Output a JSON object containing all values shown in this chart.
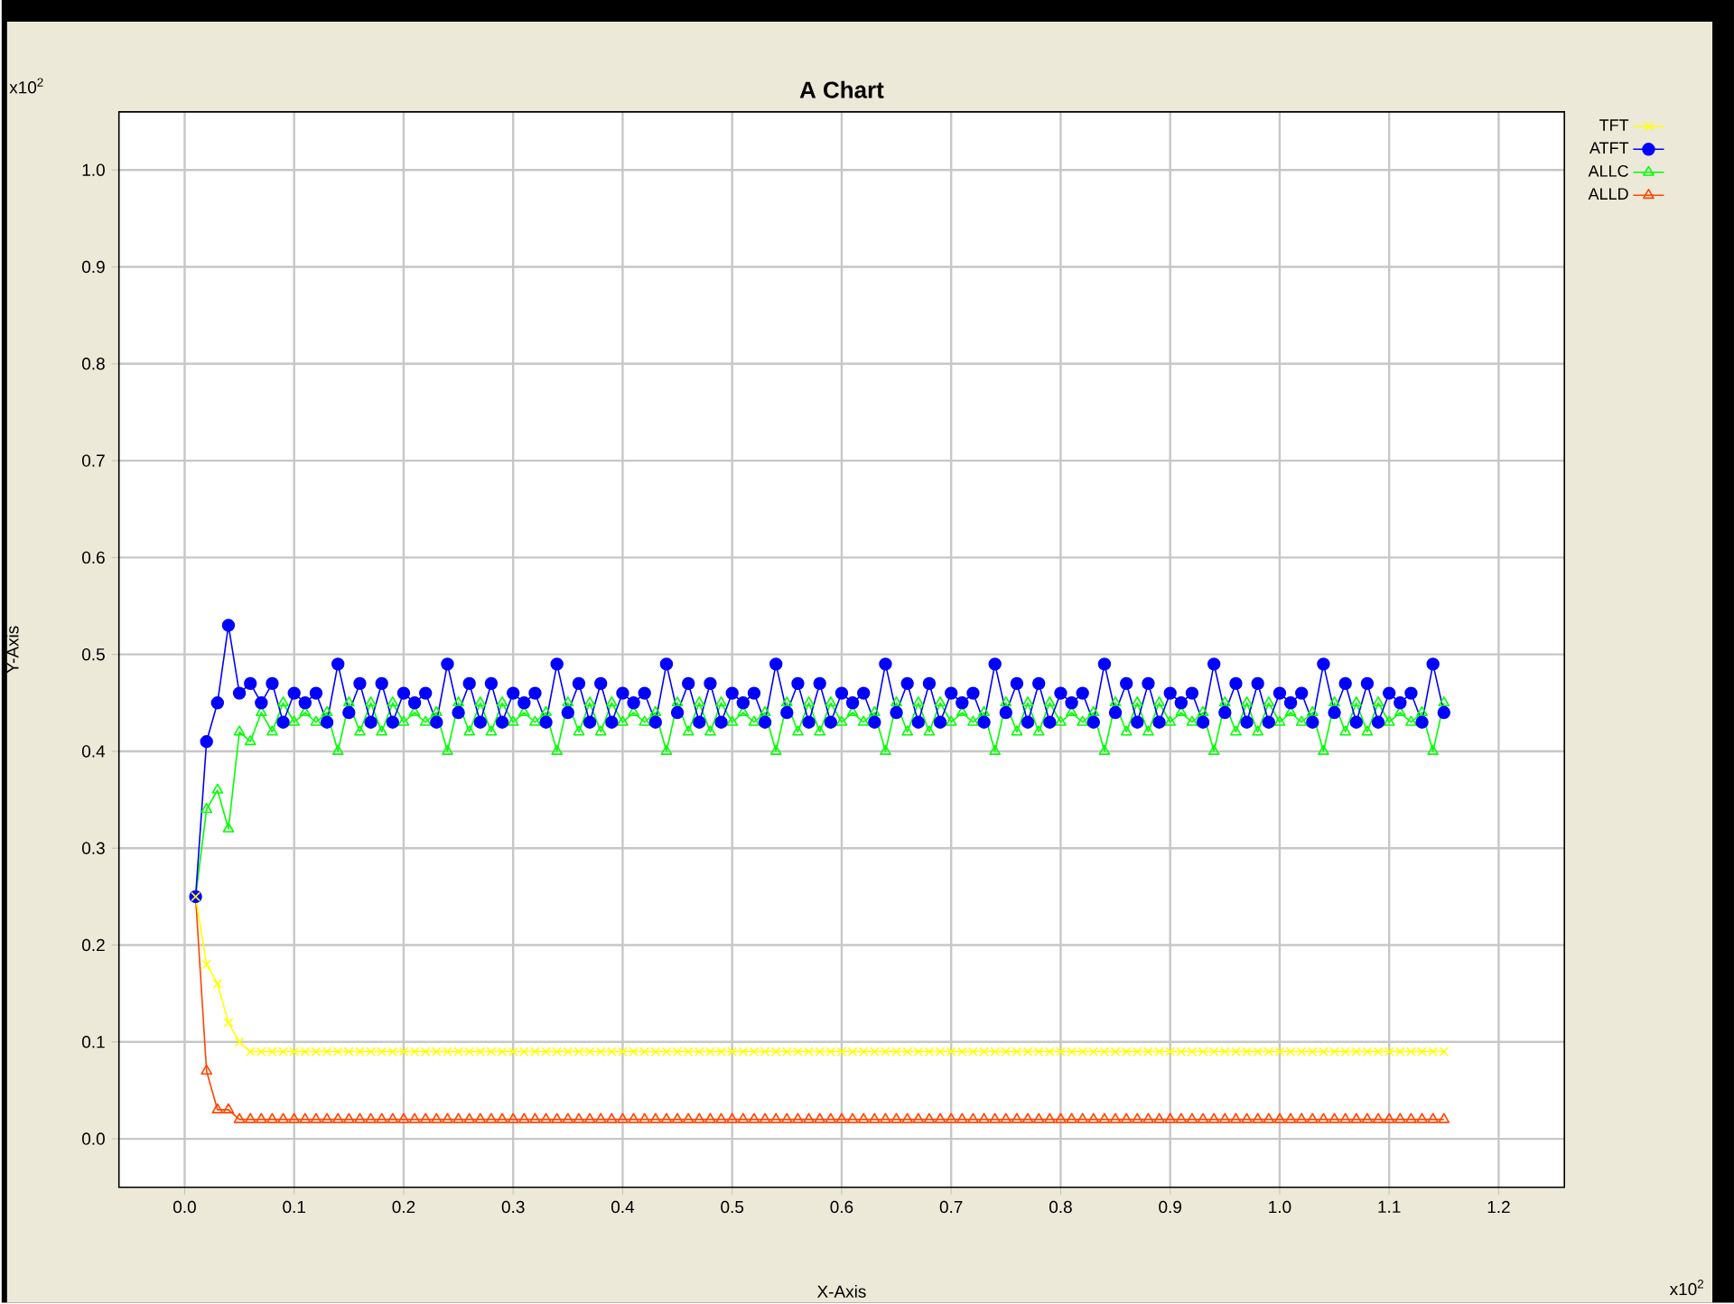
{
  "chart_data": {
    "type": "line",
    "title": "A Chart",
    "xlabel": "X-Axis",
    "ylabel": "Y-Axis",
    "annotations": [
      "x10$^{2}$",
      "x10$^{2}$"
    ],
    "x": [
      0.01,
      0.02,
      0.03,
      0.04,
      0.05,
      0.06,
      0.07,
      0.08,
      0.09,
      0.1,
      0.11,
      0.12,
      0.13,
      0.14,
      0.15,
      0.16,
      0.17,
      0.18,
      0.19,
      0.2,
      0.21,
      0.22,
      0.23,
      0.24,
      0.25,
      0.26,
      0.27,
      0.28,
      0.29,
      0.3,
      0.31,
      0.32,
      0.33,
      0.34,
      0.35,
      0.36,
      0.37,
      0.38,
      0.39,
      0.4,
      0.41,
      0.42,
      0.43,
      0.44,
      0.45,
      0.46,
      0.47,
      0.48,
      0.49,
      0.5,
      0.51,
      0.52,
      0.53,
      0.54,
      0.55,
      0.56,
      0.57,
      0.58,
      0.59,
      0.6,
      0.61,
      0.62,
      0.63,
      0.64,
      0.65,
      0.66,
      0.67,
      0.68,
      0.69,
      0.7,
      0.71,
      0.72,
      0.73,
      0.74,
      0.75,
      0.76,
      0.77,
      0.78,
      0.79,
      0.8,
      0.81,
      0.82,
      0.83,
      0.84,
      0.85,
      0.86,
      0.87,
      0.88,
      0.89,
      0.9,
      0.91,
      0.92,
      0.93,
      0.94,
      0.95,
      0.96,
      0.97,
      0.98,
      0.99,
      1.0,
      1.01,
      1.02,
      1.03,
      1.04,
      1.05,
      1.06,
      1.07,
      1.08,
      1.09,
      1.1,
      1.11,
      1.12,
      1.13,
      1.14,
      1.15
    ],
    "series": [
      {
        "name": "TFT",
        "color": "#ffff00",
        "marker": "cross",
        "values": [
          0.25,
          0.18,
          0.16,
          0.12,
          0.1,
          0.09,
          0.09,
          0.09,
          0.09,
          0.09,
          0.09,
          0.09,
          0.09,
          0.09,
          0.09,
          0.09,
          0.09,
          0.09,
          0.09,
          0.09,
          0.09,
          0.09,
          0.09,
          0.09,
          0.09,
          0.09,
          0.09,
          0.09,
          0.09,
          0.09,
          0.09,
          0.09,
          0.09,
          0.09,
          0.09,
          0.09,
          0.09,
          0.09,
          0.09,
          0.09,
          0.09,
          0.09,
          0.09,
          0.09,
          0.09,
          0.09,
          0.09,
          0.09,
          0.09,
          0.09,
          0.09,
          0.09,
          0.09,
          0.09,
          0.09,
          0.09,
          0.09,
          0.09,
          0.09,
          0.09,
          0.09,
          0.09,
          0.09,
          0.09,
          0.09,
          0.09,
          0.09,
          0.09,
          0.09,
          0.09,
          0.09,
          0.09,
          0.09,
          0.09,
          0.09,
          0.09,
          0.09,
          0.09,
          0.09,
          0.09,
          0.09,
          0.09,
          0.09,
          0.09,
          0.09,
          0.09,
          0.09,
          0.09,
          0.09,
          0.09,
          0.09,
          0.09,
          0.09,
          0.09,
          0.09,
          0.09,
          0.09,
          0.09,
          0.09,
          0.09,
          0.09,
          0.09,
          0.09,
          0.09,
          0.09,
          0.09,
          0.09,
          0.09,
          0.09,
          0.09,
          0.09,
          0.09,
          0.09,
          0.09,
          0.09
        ]
      },
      {
        "name": "ATFT",
        "color": "#0000ff",
        "marker": "circle",
        "values": [
          0.25,
          0.41,
          0.45,
          0.53,
          0.46,
          0.47,
          0.45,
          0.47,
          0.43,
          0.46,
          0.45,
          0.46,
          0.43,
          0.49,
          0.44,
          0.47,
          0.43,
          0.47,
          0.43,
          0.46,
          0.45,
          0.46,
          0.43,
          0.49,
          0.44,
          0.47,
          0.43,
          0.47,
          0.43,
          0.46,
          0.45,
          0.46,
          0.43,
          0.49,
          0.44,
          0.47,
          0.43,
          0.47,
          0.43,
          0.46,
          0.45,
          0.46,
          0.43,
          0.49,
          0.44,
          0.47,
          0.43,
          0.47,
          0.43,
          0.46,
          0.45,
          0.46,
          0.43,
          0.49,
          0.44,
          0.47,
          0.43,
          0.47,
          0.43,
          0.46,
          0.45,
          0.46,
          0.43,
          0.49,
          0.44,
          0.47,
          0.43,
          0.47,
          0.43,
          0.46,
          0.45,
          0.46,
          0.43,
          0.49,
          0.44,
          0.47,
          0.43,
          0.47,
          0.43,
          0.46,
          0.45,
          0.46,
          0.43,
          0.49,
          0.44,
          0.47,
          0.43,
          0.47,
          0.43,
          0.46,
          0.45,
          0.46,
          0.43,
          0.49,
          0.44,
          0.47,
          0.43,
          0.47,
          0.43,
          0.46,
          0.45,
          0.46,
          0.43,
          0.49,
          0.44,
          0.47,
          0.43,
          0.47,
          0.43,
          0.46,
          0.45,
          0.46,
          0.43,
          0.49,
          0.44
        ]
      },
      {
        "name": "ALLC",
        "color": "#00ff00",
        "marker": "triangle",
        "values": [
          0.25,
          0.34,
          0.36,
          0.32,
          0.42,
          0.41,
          0.44,
          0.42,
          0.45,
          0.43,
          0.44,
          0.43,
          0.44,
          0.4,
          0.45,
          0.42,
          0.45,
          0.42,
          0.45,
          0.43,
          0.44,
          0.43,
          0.44,
          0.4,
          0.45,
          0.42,
          0.45,
          0.42,
          0.45,
          0.43,
          0.44,
          0.43,
          0.44,
          0.4,
          0.45,
          0.42,
          0.45,
          0.42,
          0.45,
          0.43,
          0.44,
          0.43,
          0.44,
          0.4,
          0.45,
          0.42,
          0.45,
          0.42,
          0.45,
          0.43,
          0.44,
          0.43,
          0.44,
          0.4,
          0.45,
          0.42,
          0.45,
          0.42,
          0.45,
          0.43,
          0.44,
          0.43,
          0.44,
          0.4,
          0.45,
          0.42,
          0.45,
          0.42,
          0.45,
          0.43,
          0.44,
          0.43,
          0.44,
          0.4,
          0.45,
          0.42,
          0.45,
          0.42,
          0.45,
          0.43,
          0.44,
          0.43,
          0.44,
          0.4,
          0.45,
          0.42,
          0.45,
          0.42,
          0.45,
          0.43,
          0.44,
          0.43,
          0.44,
          0.4,
          0.45,
          0.42,
          0.45,
          0.42,
          0.45,
          0.43,
          0.44,
          0.43,
          0.44,
          0.4,
          0.45,
          0.42,
          0.45,
          0.42,
          0.45,
          0.43,
          0.44,
          0.43,
          0.44,
          0.4,
          0.45
        ]
      },
      {
        "name": "ALLD",
        "color": "#ff4500",
        "marker": "triangle",
        "values": [
          0.25,
          0.07,
          0.03,
          0.03,
          0.02,
          0.02,
          0.02,
          0.02,
          0.02,
          0.02,
          0.02,
          0.02,
          0.02,
          0.02,
          0.02,
          0.02,
          0.02,
          0.02,
          0.02,
          0.02,
          0.02,
          0.02,
          0.02,
          0.02,
          0.02,
          0.02,
          0.02,
          0.02,
          0.02,
          0.02,
          0.02,
          0.02,
          0.02,
          0.02,
          0.02,
          0.02,
          0.02,
          0.02,
          0.02,
          0.02,
          0.02,
          0.02,
          0.02,
          0.02,
          0.02,
          0.02,
          0.02,
          0.02,
          0.02,
          0.02,
          0.02,
          0.02,
          0.02,
          0.02,
          0.02,
          0.02,
          0.02,
          0.02,
          0.02,
          0.02,
          0.02,
          0.02,
          0.02,
          0.02,
          0.02,
          0.02,
          0.02,
          0.02,
          0.02,
          0.02,
          0.02,
          0.02,
          0.02,
          0.02,
          0.02,
          0.02,
          0.02,
          0.02,
          0.02,
          0.02,
          0.02,
          0.02,
          0.02,
          0.02,
          0.02,
          0.02,
          0.02,
          0.02,
          0.02,
          0.02,
          0.02,
          0.02,
          0.02,
          0.02,
          0.02,
          0.02,
          0.02,
          0.02,
          0.02,
          0.02,
          0.02,
          0.02,
          0.02,
          0.02,
          0.02,
          0.02,
          0.02,
          0.02,
          0.02,
          0.02,
          0.02,
          0.02,
          0.02,
          0.02,
          0.02
        ]
      }
    ],
    "xlim": [
      -0.06,
      1.26
    ],
    "ylim": [
      -0.05,
      1.06
    ],
    "xticks": [
      {
        "value": 0,
        "label": "0.0"
      },
      {
        "value": 0.1,
        "label": "0.1"
      },
      {
        "value": 0.2,
        "label": "0.2"
      },
      {
        "value": 0.3,
        "label": "0.3"
      },
      {
        "value": 0.4,
        "label": "0.4"
      },
      {
        "value": 0.5,
        "label": "0.5"
      },
      {
        "value": 0.6,
        "label": "0.6"
      },
      {
        "value": 0.7,
        "label": "0.7"
      },
      {
        "value": 0.8,
        "label": "0.8"
      },
      {
        "value": 0.9,
        "label": "0.9"
      },
      {
        "value": 1,
        "label": "1.0"
      },
      {
        "value": 1.1,
        "label": "1.1"
      },
      {
        "value": 1.2,
        "label": "1.2"
      }
    ],
    "yticks": [
      {
        "value": 0,
        "label": "0.0"
      },
      {
        "value": 0.1,
        "label": "0.1"
      },
      {
        "value": 0.2,
        "label": "0.2"
      },
      {
        "value": 0.3,
        "label": "0.3"
      },
      {
        "value": 0.4,
        "label": "0.4"
      },
      {
        "value": 0.5,
        "label": "0.5"
      },
      {
        "value": 0.6,
        "label": "0.6"
      },
      {
        "value": 0.7,
        "label": "0.7"
      },
      {
        "value": 0.8,
        "label": "0.8"
      },
      {
        "value": 0.9,
        "label": "0.9"
      },
      {
        "value": 1,
        "label": "1.0"
      }
    ],
    "grid": true,
    "legend": "top right"
  }
}
